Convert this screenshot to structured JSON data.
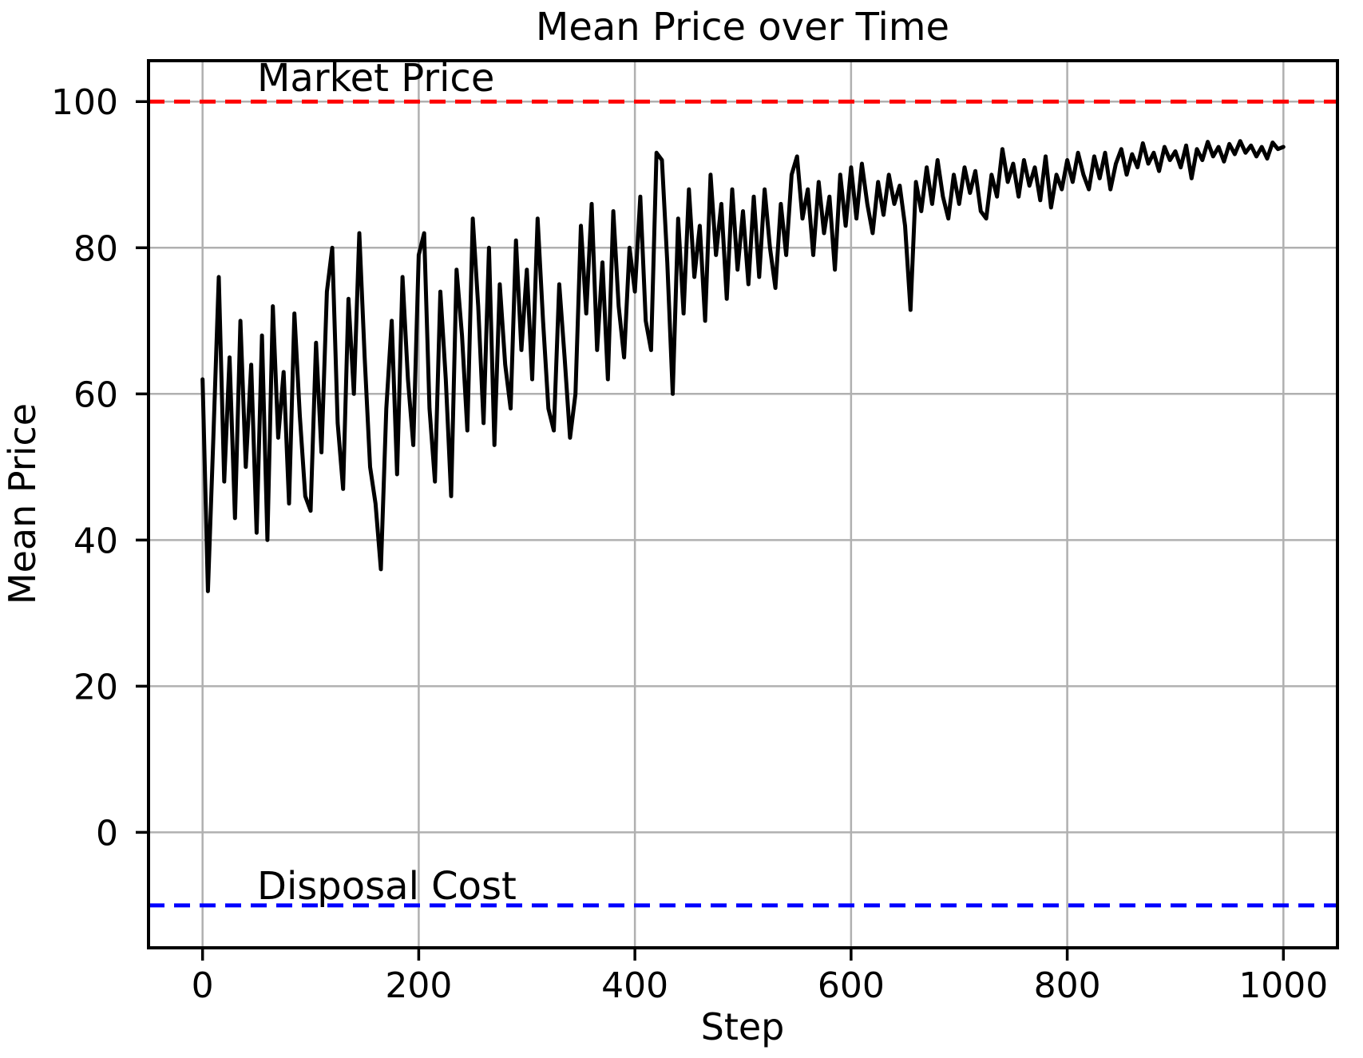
{
  "figure": {
    "background": "#ffffff"
  },
  "chart_data": {
    "type": "line",
    "title": "Mean Price over Time",
    "xlabel": "Step",
    "ylabel": "Mean Price",
    "xlim": [
      -50,
      1050
    ],
    "ylim": [
      -15.8,
      105.6
    ],
    "x_ticks": [
      0,
      200,
      400,
      600,
      800,
      1000
    ],
    "y_ticks": [
      0,
      20,
      40,
      60,
      80,
      100
    ],
    "grid": true,
    "grid_color": "#b0b0b0",
    "legend": "none",
    "series": [
      {
        "name": "Mean Price",
        "color": "#000000",
        "style": "solid",
        "x": [
          0,
          5,
          10,
          15,
          20,
          25,
          30,
          35,
          40,
          45,
          50,
          55,
          60,
          65,
          70,
          75,
          80,
          85,
          90,
          95,
          100,
          105,
          110,
          115,
          120,
          125,
          130,
          135,
          140,
          145,
          150,
          155,
          160,
          165,
          170,
          175,
          180,
          185,
          190,
          195,
          200,
          205,
          210,
          215,
          220,
          225,
          230,
          235,
          240,
          245,
          250,
          255,
          260,
          265,
          270,
          275,
          280,
          285,
          290,
          295,
          300,
          305,
          310,
          315,
          320,
          325,
          330,
          335,
          340,
          345,
          350,
          355,
          360,
          365,
          370,
          375,
          380,
          385,
          390,
          395,
          400,
          405,
          410,
          415,
          420,
          425,
          430,
          435,
          440,
          445,
          450,
          455,
          460,
          465,
          470,
          475,
          480,
          485,
          490,
          495,
          500,
          505,
          510,
          515,
          520,
          525,
          530,
          535,
          540,
          545,
          550,
          555,
          560,
          565,
          570,
          575,
          580,
          585,
          590,
          595,
          600,
          605,
          610,
          615,
          620,
          625,
          630,
          635,
          640,
          645,
          650,
          655,
          660,
          665,
          670,
          675,
          680,
          685,
          690,
          695,
          700,
          705,
          710,
          715,
          720,
          725,
          730,
          735,
          740,
          745,
          750,
          755,
          760,
          765,
          770,
          775,
          780,
          785,
          790,
          795,
          800,
          805,
          810,
          815,
          820,
          825,
          830,
          835,
          840,
          845,
          850,
          855,
          860,
          865,
          870,
          875,
          880,
          885,
          890,
          895,
          900,
          905,
          910,
          915,
          920,
          925,
          930,
          935,
          940,
          945,
          950,
          955,
          960,
          965,
          970,
          975,
          980,
          985,
          990,
          995,
          1000
        ],
        "y": [
          62,
          33,
          54,
          76,
          48,
          65,
          43,
          70,
          50,
          64,
          41,
          68,
          40,
          72,
          54,
          63,
          45,
          71,
          57,
          46,
          44,
          67,
          52,
          74,
          80,
          56,
          47,
          73,
          60,
          82,
          65,
          50,
          45,
          36,
          58,
          70,
          49,
          76,
          62,
          53,
          79,
          82,
          58,
          48,
          74,
          62,
          46,
          77,
          68,
          55,
          84,
          72,
          56,
          80,
          53,
          75,
          64,
          58,
          81,
          66,
          77,
          62,
          84,
          70,
          58,
          55,
          75,
          65,
          54,
          60,
          83,
          71,
          86,
          66,
          78,
          62,
          85,
          72,
          65,
          80,
          74,
          87,
          70,
          66,
          93,
          92,
          78,
          60,
          84,
          71,
          88,
          76,
          83,
          70,
          90,
          79,
          86,
          73,
          88,
          77,
          85,
          75,
          87,
          76,
          88,
          80,
          74.5,
          86,
          79,
          90,
          92.5,
          84,
          88,
          79,
          89,
          82,
          87,
          77,
          90,
          83,
          91,
          84,
          91.5,
          86,
          82,
          89,
          84.5,
          90,
          86,
          88.5,
          83,
          71.5,
          89,
          85,
          91,
          86,
          92,
          87,
          84,
          90,
          86,
          91,
          87.5,
          90.5,
          85,
          84,
          90,
          87,
          93.5,
          89,
          91.5,
          87,
          92,
          88.5,
          91,
          86.5,
          92.5,
          85.5,
          90,
          88,
          92,
          89,
          93,
          90,
          88,
          92.5,
          89.5,
          93,
          88,
          91.5,
          93.5,
          90,
          92.8,
          91,
          94.3,
          91.5,
          93,
          90.5,
          93.8,
          92,
          93.2,
          91,
          94,
          89.5,
          93.5,
          92,
          94.5,
          92.5,
          93.8,
          91.8,
          94.2,
          92.8,
          94.6,
          93,
          94,
          92.5,
          93.8,
          92.2,
          94.4,
          93.5,
          93.8
        ]
      }
    ],
    "reference_lines": [
      {
        "label": "Market Price",
        "value": 100,
        "color": "#ff0000",
        "style": "dashed",
        "label_x": 50
      },
      {
        "label": "Disposal Cost",
        "value": -10,
        "color": "#0000ff",
        "style": "dashed",
        "label_x": 50
      }
    ]
  }
}
